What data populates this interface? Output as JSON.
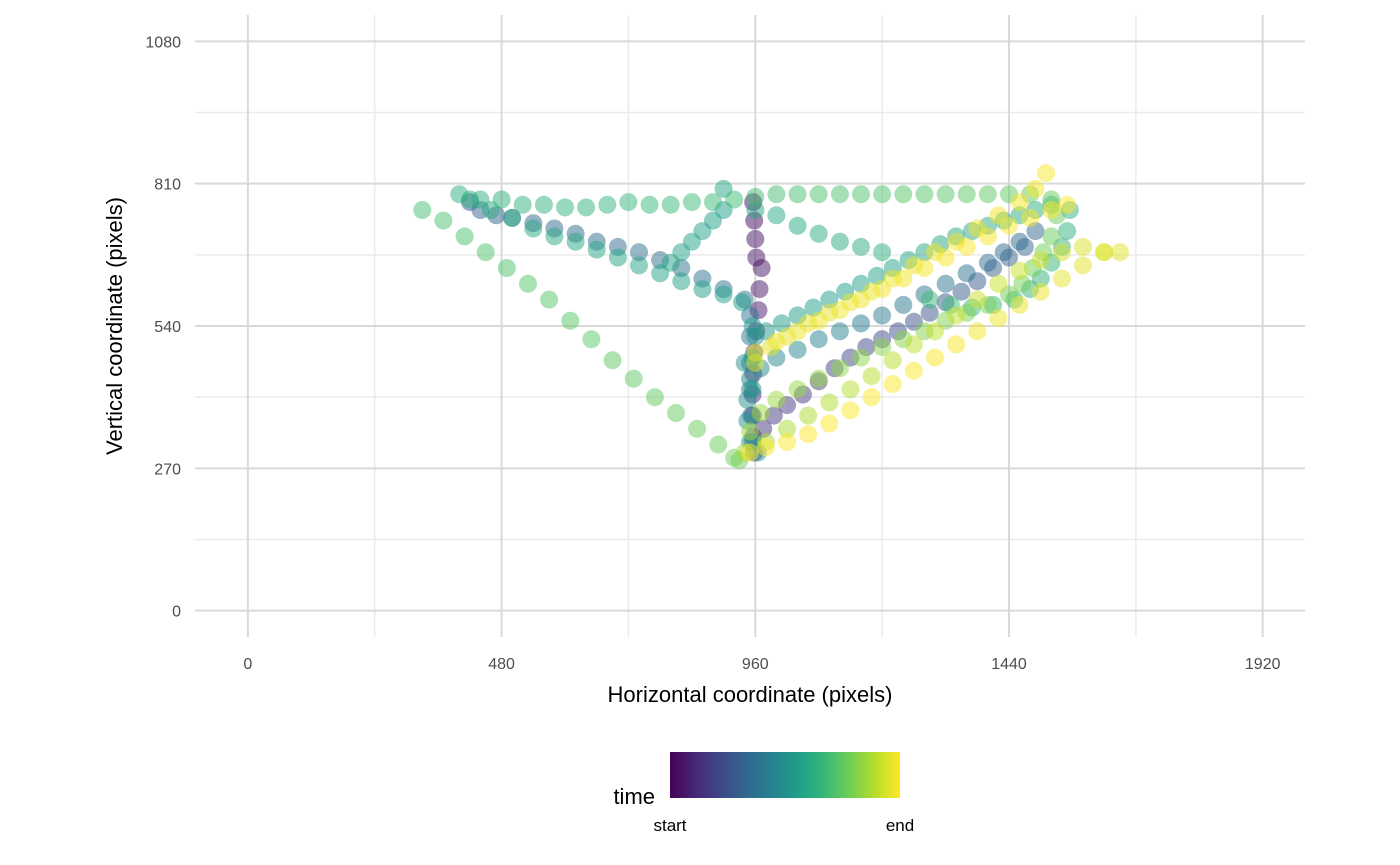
{
  "chart_data": {
    "type": "scatter",
    "title": "",
    "xlabel": "Horizontal coordinate (pixels)",
    "ylabel": "Vertical coordinate (pixels)",
    "xlim": [
      -100,
      2000
    ],
    "ylim": [
      -50,
      1130
    ],
    "x_ticks": [
      0,
      480,
      960,
      1440,
      1920
    ],
    "x_tick_labels": [
      "0",
      "480",
      "960",
      "1440",
      "1920"
    ],
    "y_ticks": [
      0,
      270,
      540,
      810,
      1080
    ],
    "y_tick_labels": [
      "0",
      "270",
      "540",
      "810",
      "1080"
    ],
    "grid": true,
    "legend": {
      "title": "time",
      "position": "bottom",
      "labels": [
        "start",
        "end"
      ],
      "colors": [
        "#440154",
        "#482878",
        "#3e4989",
        "#31688e",
        "#26828e",
        "#1f9e89",
        "#35b779",
        "#6ece58",
        "#b5de2b",
        "#fde725"
      ]
    },
    "point_opacity": 0.5,
    "path": [
      [
        956,
        775,
        0.02
      ],
      [
        958,
        740,
        0.03
      ],
      [
        960,
        705,
        0.04
      ],
      [
        962,
        670,
        0.05
      ],
      [
        972,
        650,
        0.055
      ],
      [
        968,
        610,
        0.06
      ],
      [
        966,
        570,
        0.07
      ],
      [
        962,
        530,
        0.08
      ],
      [
        958,
        490,
        0.09
      ],
      [
        956,
        450,
        0.1
      ],
      [
        955,
        410,
        0.11
      ],
      [
        955,
        370,
        0.12
      ],
      [
        956,
        330,
        0.13
      ],
      [
        958,
        300,
        0.14
      ],
      [
        975,
        345,
        0.15
      ],
      [
        995,
        370,
        0.16
      ],
      [
        1020,
        390,
        0.17
      ],
      [
        1050,
        410,
        0.18
      ],
      [
        1080,
        435,
        0.19
      ],
      [
        1110,
        460,
        0.2
      ],
      [
        1140,
        480,
        0.21
      ],
      [
        1170,
        500,
        0.22
      ],
      [
        1200,
        515,
        0.23
      ],
      [
        1230,
        530,
        0.24
      ],
      [
        1260,
        548,
        0.25
      ],
      [
        1290,
        565,
        0.26
      ],
      [
        1320,
        585,
        0.27
      ],
      [
        1350,
        605,
        0.28
      ],
      [
        1380,
        625,
        0.29
      ],
      [
        1410,
        650,
        0.3
      ],
      [
        1440,
        670,
        0.31
      ],
      [
        1470,
        690,
        0.32
      ],
      [
        1490,
        720,
        0.33
      ],
      [
        1460,
        700,
        0.34
      ],
      [
        1430,
        680,
        0.35
      ],
      [
        1400,
        660,
        0.36
      ],
      [
        1360,
        640,
        0.37
      ],
      [
        1320,
        620,
        0.38
      ],
      [
        1280,
        600,
        0.39
      ],
      [
        1240,
        580,
        0.4
      ],
      [
        1200,
        560,
        0.41
      ],
      [
        1160,
        545,
        0.42
      ],
      [
        1120,
        530,
        0.43
      ],
      [
        1080,
        515,
        0.44
      ],
      [
        1040,
        495,
        0.45
      ],
      [
        1000,
        480,
        0.46
      ],
      [
        970,
        460,
        0.47
      ],
      [
        950,
        440,
        0.48
      ],
      [
        945,
        400,
        0.49
      ],
      [
        945,
        360,
        0.5
      ],
      [
        950,
        320,
        0.51
      ],
      [
        965,
        300,
        0.52
      ],
      [
        955,
        420,
        0.53
      ],
      [
        955,
        480,
        0.535
      ],
      [
        955,
        540,
        0.54
      ],
      [
        935,
        585,
        0.545
      ],
      [
        900,
        600,
        0.55
      ],
      [
        860,
        610,
        0.56
      ],
      [
        820,
        625,
        0.565
      ],
      [
        780,
        640,
        0.57
      ],
      [
        740,
        655,
        0.575
      ],
      [
        700,
        670,
        0.58
      ],
      [
        660,
        685,
        0.585
      ],
      [
        620,
        700,
        0.59
      ],
      [
        580,
        710,
        0.595
      ],
      [
        540,
        725,
        0.6
      ],
      [
        500,
        745,
        0.605
      ],
      [
        460,
        760,
        0.61
      ],
      [
        420,
        780,
        0.615
      ],
      [
        400,
        790,
        0.62
      ],
      [
        440,
        780,
        0.625
      ],
      [
        480,
        780,
        0.63
      ],
      [
        520,
        770,
        0.635
      ],
      [
        560,
        770,
        0.64
      ],
      [
        600,
        765,
        0.645
      ],
      [
        640,
        765,
        0.65
      ],
      [
        680,
        770,
        0.655
      ],
      [
        720,
        775,
        0.66
      ],
      [
        760,
        770,
        0.665
      ],
      [
        800,
        770,
        0.67
      ],
      [
        840,
        775,
        0.675
      ],
      [
        880,
        775,
        0.68
      ],
      [
        920,
        780,
        0.685
      ],
      [
        960,
        785,
        0.69
      ],
      [
        1000,
        790,
        0.695
      ],
      [
        1040,
        790,
        0.7
      ],
      [
        1080,
        790,
        0.705
      ],
      [
        1120,
        790,
        0.71
      ],
      [
        1160,
        790,
        0.715
      ],
      [
        1200,
        790,
        0.72
      ],
      [
        1240,
        790,
        0.725
      ],
      [
        1280,
        790,
        0.73
      ],
      [
        1320,
        790,
        0.735
      ],
      [
        1360,
        790,
        0.74
      ],
      [
        1400,
        790,
        0.745
      ],
      [
        1440,
        790,
        0.75
      ],
      [
        1480,
        790,
        0.755
      ],
      [
        1520,
        780,
        0.76
      ],
      [
        1530,
        750,
        0.765
      ],
      [
        1520,
        710,
        0.77
      ],
      [
        1505,
        680,
        0.775
      ],
      [
        1485,
        650,
        0.78
      ],
      [
        1465,
        620,
        0.785
      ],
      [
        1440,
        600,
        0.79
      ],
      [
        1400,
        580,
        0.795
      ],
      [
        1360,
        565,
        0.8
      ],
      [
        1320,
        550,
        0.805
      ],
      [
        1280,
        530,
        0.81
      ],
      [
        1240,
        515,
        0.815
      ],
      [
        1200,
        500,
        0.82
      ],
      [
        1160,
        480,
        0.825
      ],
      [
        1120,
        460,
        0.83
      ],
      [
        1080,
        440,
        0.835
      ],
      [
        1040,
        420,
        0.84
      ],
      [
        1000,
        400,
        0.845
      ],
      [
        970,
        375,
        0.85
      ],
      [
        950,
        340,
        0.855
      ],
      [
        940,
        300,
        0.86
      ],
      [
        980,
        320,
        0.865
      ],
      [
        1020,
        345,
        0.87
      ],
      [
        1060,
        370,
        0.875
      ],
      [
        1100,
        395,
        0.88
      ],
      [
        1140,
        420,
        0.885
      ],
      [
        1180,
        445,
        0.89
      ],
      [
        1220,
        475,
        0.895
      ],
      [
        1260,
        505,
        0.9
      ],
      [
        1300,
        530,
        0.905
      ],
      [
        1340,
        560,
        0.91
      ],
      [
        1380,
        590,
        0.915
      ],
      [
        1420,
        620,
        0.92
      ],
      [
        1460,
        645,
        0.925
      ],
      [
        1500,
        665,
        0.93
      ],
      [
        1540,
        680,
        0.935
      ],
      [
        1580,
        690,
        0.94
      ],
      [
        1620,
        680,
        0.945
      ],
      [
        1650,
        680,
        0.95
      ],
      [
        1620,
        680,
        0.955
      ],
      [
        1580,
        655,
        0.96
      ],
      [
        1540,
        630,
        0.965
      ],
      [
        1500,
        605,
        0.97
      ],
      [
        1460,
        580,
        0.975
      ],
      [
        1420,
        555,
        0.98
      ],
      [
        1380,
        530,
        0.985
      ],
      [
        1340,
        505,
        0.99
      ],
      [
        1300,
        480,
        0.992
      ],
      [
        1260,
        455,
        0.994
      ],
      [
        1220,
        430,
        0.995
      ],
      [
        1180,
        405,
        0.996
      ],
      [
        1140,
        380,
        0.997
      ],
      [
        1100,
        355,
        0.998
      ],
      [
        1060,
        335,
        0.9985
      ],
      [
        1020,
        320,
        0.999
      ],
      [
        980,
        310,
        0.9995
      ],
      [
        950,
        300,
        1.0
      ]
    ],
    "tracks": [
      {
        "note": "",
        "points": [
          [
            420,
            775,
            0.3
          ],
          [
            440,
            760,
            0.31
          ],
          [
            470,
            750,
            0.32
          ],
          [
            500,
            745,
            0.325
          ],
          [
            540,
            735,
            0.33
          ],
          [
            580,
            725,
            0.335
          ],
          [
            620,
            715,
            0.34
          ],
          [
            660,
            700,
            0.345
          ],
          [
            700,
            690,
            0.35
          ],
          [
            740,
            680,
            0.355
          ],
          [
            780,
            665,
            0.36
          ],
          [
            820,
            650,
            0.365
          ],
          [
            860,
            630,
            0.37
          ],
          [
            900,
            610,
            0.375
          ],
          [
            940,
            590,
            0.38
          ],
          [
            950,
            560,
            0.385
          ],
          [
            950,
            520,
            0.39
          ],
          [
            950,
            470,
            0.395
          ],
          [
            950,
            420,
            0.4
          ],
          [
            952,
            370,
            0.405
          ],
          [
            955,
            320,
            0.41
          ]
        ]
      },
      {
        "note": "",
        "points": [
          [
            330,
            760,
            0.7
          ],
          [
            370,
            740,
            0.705
          ],
          [
            410,
            710,
            0.71
          ],
          [
            450,
            680,
            0.715
          ],
          [
            490,
            650,
            0.72
          ],
          [
            530,
            620,
            0.725
          ],
          [
            570,
            590,
            0.73
          ],
          [
            610,
            550,
            0.735
          ],
          [
            650,
            515,
            0.74
          ],
          [
            690,
            475,
            0.745
          ],
          [
            730,
            440,
            0.75
          ],
          [
            770,
            405,
            0.755
          ],
          [
            810,
            375,
            0.76
          ],
          [
            850,
            345,
            0.765
          ],
          [
            890,
            315,
            0.77
          ],
          [
            920,
            290,
            0.775
          ],
          [
            930,
            285,
            0.78
          ]
        ]
      },
      {
        "note": "",
        "points": [
          [
            960,
            470,
            0.96
          ],
          [
            990,
            500,
            0.962
          ],
          [
            1020,
            520,
            0.964
          ],
          [
            1060,
            545,
            0.966
          ],
          [
            1100,
            565,
            0.968
          ],
          [
            1140,
            585,
            0.97
          ],
          [
            1180,
            605,
            0.972
          ],
          [
            1220,
            630,
            0.974
          ],
          [
            1260,
            655,
            0.976
          ],
          [
            1300,
            680,
            0.978
          ],
          [
            1340,
            700,
            0.98
          ],
          [
            1380,
            725,
            0.982
          ],
          [
            1420,
            750,
            0.984
          ],
          [
            1460,
            775,
            0.986
          ],
          [
            1490,
            800,
            0.99
          ],
          [
            1510,
            830,
            0.995
          ]
        ]
      },
      {
        "note": "",
        "points": [
          [
            960,
            490,
            0.97
          ],
          [
            1000,
            510,
            0.972
          ],
          [
            1040,
            530,
            0.974
          ],
          [
            1080,
            550,
            0.976
          ],
          [
            1120,
            570,
            0.978
          ],
          [
            1160,
            590,
            0.98
          ],
          [
            1200,
            610,
            0.982
          ],
          [
            1240,
            630,
            0.984
          ],
          [
            1280,
            650,
            0.986
          ],
          [
            1320,
            670,
            0.988
          ],
          [
            1360,
            690,
            0.99
          ],
          [
            1400,
            710,
            0.992
          ],
          [
            1440,
            730,
            0.994
          ],
          [
            1480,
            745,
            0.996
          ],
          [
            1520,
            760,
            0.998
          ],
          [
            1550,
            770,
            1.0
          ]
        ]
      },
      {
        "note": "",
        "points": [
          [
            940,
            470,
            0.5
          ],
          [
            960,
            520,
            0.52
          ],
          [
            980,
            530,
            0.53
          ],
          [
            1010,
            545,
            0.54
          ],
          [
            1040,
            560,
            0.545
          ],
          [
            1070,
            575,
            0.55
          ],
          [
            1100,
            590,
            0.555
          ],
          [
            1130,
            605,
            0.56
          ],
          [
            1160,
            620,
            0.565
          ],
          [
            1190,
            635,
            0.57
          ],
          [
            1220,
            650,
            0.575
          ],
          [
            1250,
            665,
            0.58
          ],
          [
            1280,
            680,
            0.585
          ],
          [
            1310,
            695,
            0.59
          ],
          [
            1340,
            710,
            0.595
          ],
          [
            1370,
            720,
            0.6
          ],
          [
            1400,
            730,
            0.605
          ],
          [
            1430,
            740,
            0.61
          ],
          [
            1460,
            750,
            0.615
          ],
          [
            1490,
            760,
            0.62
          ],
          [
            1520,
            770,
            0.625
          ],
          [
            1555,
            760,
            0.63
          ],
          [
            1550,
            720,
            0.635
          ],
          [
            1540,
            690,
            0.64
          ],
          [
            1520,
            660,
            0.645
          ],
          [
            1500,
            630,
            0.65
          ],
          [
            1480,
            610,
            0.655
          ],
          [
            1450,
            590,
            0.66
          ],
          [
            1410,
            580,
            0.665
          ],
          [
            1370,
            575,
            0.67
          ],
          [
            1330,
            580,
            0.675
          ],
          [
            1290,
            590,
            0.68
          ]
        ]
      },
      {
        "note": "",
        "points": [
          [
            900,
            760,
            0.55
          ],
          [
            880,
            740,
            0.56
          ],
          [
            860,
            720,
            0.565
          ],
          [
            840,
            700,
            0.57
          ],
          [
            820,
            680,
            0.575
          ],
          [
            800,
            660,
            0.58
          ],
          [
            900,
            800,
            0.585
          ],
          [
            960,
            760,
            0.59
          ],
          [
            1000,
            750,
            0.595
          ],
          [
            1040,
            730,
            0.6
          ],
          [
            1080,
            715,
            0.605
          ],
          [
            1120,
            700,
            0.61
          ],
          [
            1160,
            690,
            0.615
          ],
          [
            1200,
            680,
            0.62
          ]
        ]
      }
    ]
  }
}
